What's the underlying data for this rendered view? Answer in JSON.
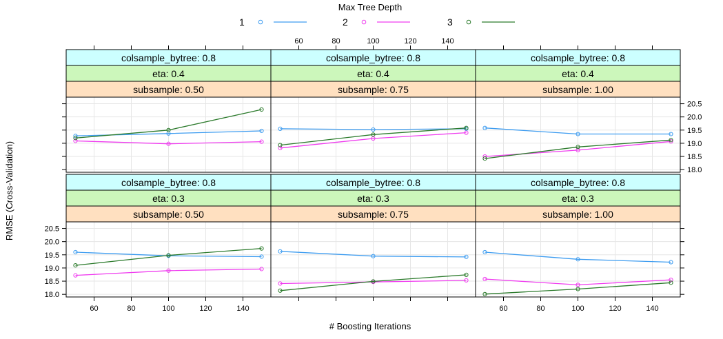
{
  "chart_data": {
    "type": "line",
    "title": "",
    "xlabel": "# Boosting Iterations",
    "ylabel": "RMSE (Cross-Validation)",
    "legend": {
      "title": "Max Tree Depth",
      "position": "top",
      "entries": [
        "1",
        "2",
        "3"
      ]
    },
    "colors": {
      "1": "#3d9cf0",
      "2": "#ef3cef",
      "3": "#2b7a2b",
      "strip_colsample": "#ccffff",
      "strip_eta": "#ccf7bb",
      "strip_subsample": "#ffe0c0",
      "grid": "#e6e6e6"
    },
    "x": [
      50,
      100,
      150
    ],
    "xlim": [
      45,
      155
    ],
    "ylim": [
      17.9,
      20.75
    ],
    "xticks": [
      "60",
      "80",
      "100",
      "120",
      "140"
    ],
    "yticks": [
      "18.0",
      "18.5",
      "19.0",
      "19.5",
      "20.0",
      "20.5"
    ],
    "grid": true,
    "panels": [
      {
        "strips": [
          "colsample_bytree: 0.8",
          "eta: 0.4",
          "subsample: 0.50"
        ],
        "series": [
          {
            "name": "1",
            "values": [
              19.28,
              19.37,
              19.47
            ]
          },
          {
            "name": "2",
            "values": [
              19.09,
              18.98,
              19.06
            ]
          },
          {
            "name": "3",
            "values": [
              19.2,
              19.5,
              20.28
            ]
          }
        ]
      },
      {
        "strips": [
          "colsample_bytree: 0.8",
          "eta: 0.4",
          "subsample: 0.75"
        ],
        "series": [
          {
            "name": "1",
            "values": [
              19.55,
              19.52,
              19.55
            ]
          },
          {
            "name": "2",
            "values": [
              18.82,
              19.18,
              19.4
            ]
          },
          {
            "name": "3",
            "values": [
              18.93,
              19.33,
              19.58
            ]
          }
        ]
      },
      {
        "strips": [
          "colsample_bytree: 0.8",
          "eta: 0.4",
          "subsample: 1.00"
        ],
        "series": [
          {
            "name": "1",
            "values": [
              19.58,
              19.35,
              19.35
            ]
          },
          {
            "name": "2",
            "values": [
              18.5,
              18.74,
              19.07
            ]
          },
          {
            "name": "3",
            "values": [
              18.42,
              18.86,
              19.12
            ]
          }
        ]
      },
      {
        "strips": [
          "colsample_bytree: 0.8",
          "eta: 0.3",
          "subsample: 0.50"
        ],
        "series": [
          {
            "name": "1",
            "values": [
              19.6,
              19.46,
              19.43
            ]
          },
          {
            "name": "2",
            "values": [
              18.72,
              18.9,
              18.96
            ]
          },
          {
            "name": "3",
            "values": [
              19.1,
              19.48,
              19.74
            ]
          }
        ]
      },
      {
        "strips": [
          "colsample_bytree: 0.8",
          "eta: 0.3",
          "subsample: 0.75"
        ],
        "series": [
          {
            "name": "1",
            "values": [
              19.63,
              19.45,
              19.42
            ]
          },
          {
            "name": "2",
            "values": [
              18.41,
              18.47,
              18.53
            ]
          },
          {
            "name": "3",
            "values": [
              18.14,
              18.49,
              18.74
            ]
          }
        ]
      },
      {
        "strips": [
          "colsample_bytree: 0.8",
          "eta: 0.3",
          "subsample: 1.00"
        ],
        "series": [
          {
            "name": "1",
            "values": [
              19.6,
              19.33,
              19.22
            ]
          },
          {
            "name": "2",
            "values": [
              18.58,
              18.36,
              18.55
            ]
          },
          {
            "name": "3",
            "values": [
              18.01,
              18.2,
              18.44
            ]
          }
        ]
      }
    ]
  }
}
